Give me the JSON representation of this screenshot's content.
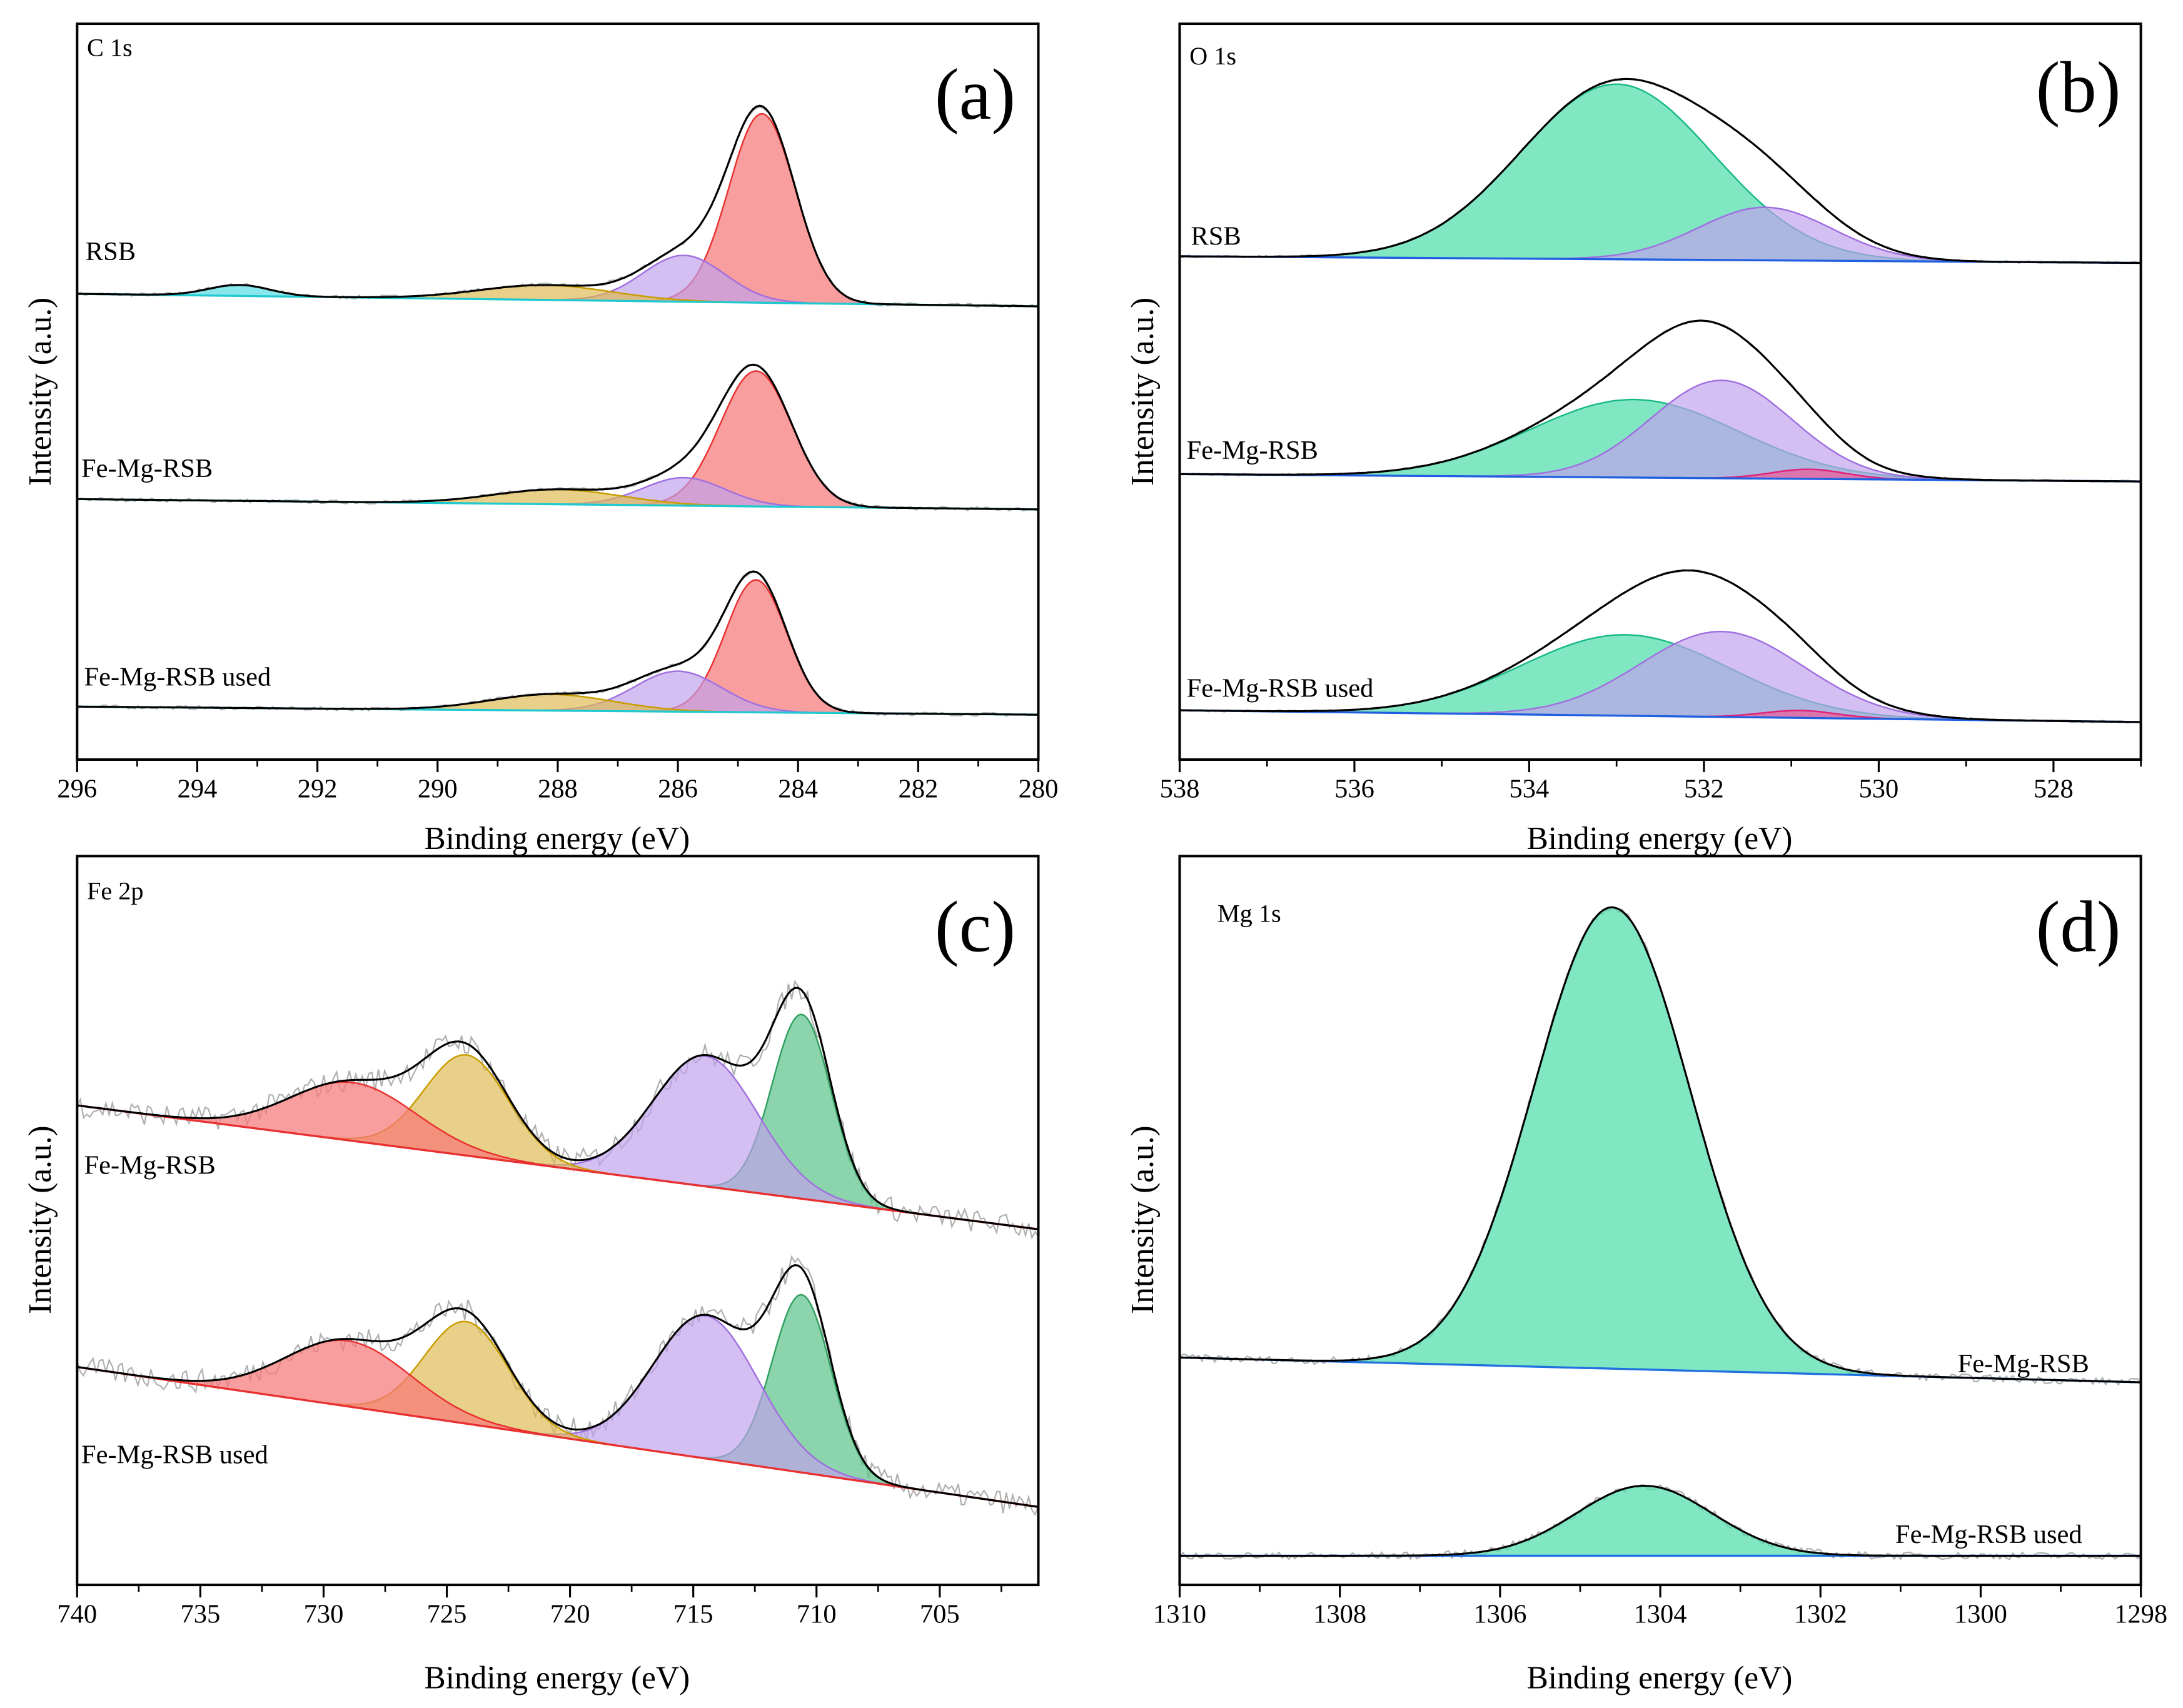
{
  "chart_data": [
    {
      "id": "a",
      "type": "area",
      "panel_label": "(a)",
      "title": "C 1s",
      "xlabel": "Binding energy (eV)",
      "ylabel": "Intensity (a.u.)",
      "xlim": [
        296,
        280
      ],
      "ylim": [
        0,
        100
      ],
      "xmajor": 2,
      "xminor": 1,
      "xticks": [
        "296",
        "294",
        "292",
        "290",
        "288",
        "286",
        "284",
        "282",
        "280"
      ],
      "raw_noise": 0.25,
      "baseline_color": "#20c8d0",
      "samples": [
        {
          "name": "RSB",
          "baseline": [
            63.3,
            61.6
          ],
          "peaks": [
            {
              "center": 284.6,
              "height": 25.7,
              "fwhm": 1.3,
              "color": "red"
            },
            {
              "center": 285.9,
              "height": 6.3,
              "fwhm": 1.6,
              "color": "purple"
            },
            {
              "center": 288.2,
              "height": 2.0,
              "fwhm": 2.6,
              "color": "gold"
            },
            {
              "center": 293.3,
              "height": 1.5,
              "fwhm": 1.2,
              "color": "cyan"
            }
          ]
        },
        {
          "name": "Fe-Mg-RSB",
          "baseline": [
            35.4,
            34.0
          ],
          "peaks": [
            {
              "center": 284.7,
              "height": 18.4,
              "fwhm": 1.4,
              "color": "red"
            },
            {
              "center": 285.9,
              "height": 3.8,
              "fwhm": 1.6,
              "color": "purple"
            },
            {
              "center": 288.0,
              "height": 2.0,
              "fwhm": 2.5,
              "color": "gold"
            }
          ]
        },
        {
          "name": "Fe-Mg-RSB used",
          "baseline": [
            7.2,
            6.1
          ],
          "peaks": [
            {
              "center": 284.7,
              "height": 18.0,
              "fwhm": 1.2,
              "color": "red"
            },
            {
              "center": 286.0,
              "height": 5.5,
              "fwhm": 1.7,
              "color": "purple"
            },
            {
              "center": 288.1,
              "height": 2.2,
              "fwhm": 2.4,
              "color": "gold"
            }
          ]
        }
      ]
    },
    {
      "id": "b",
      "type": "area",
      "panel_label": "(b)",
      "title": "O 1s",
      "xlabel": "Binding energy (eV)",
      "ylabel": "Intensity (a.u.)",
      "xlim": [
        538,
        527
      ],
      "ylim": [
        0,
        100
      ],
      "xmajor": 2,
      "xminor": 1,
      "xticks": [
        "538",
        "536",
        "534",
        "532",
        "530",
        "528"
      ],
      "raw_noise": 0.15,
      "baseline_color": "#2060e0",
      "samples": [
        {
          "name": "RSB",
          "baseline": [
            68.4,
            67.5
          ],
          "peaks": [
            {
              "center": 533.0,
              "height": 23.8,
              "fwhm": 2.6,
              "color": "green"
            },
            {
              "center": 531.3,
              "height": 7.2,
              "fwhm": 1.8,
              "color": "purple"
            }
          ]
        },
        {
          "name": "Fe-Mg-RSB",
          "baseline": [
            38.8,
            37.8
          ],
          "peaks": [
            {
              "center": 532.8,
              "height": 10.6,
              "fwhm": 2.8,
              "color": "green"
            },
            {
              "center": 531.8,
              "height": 13.3,
              "fwhm": 1.9,
              "color": "purple"
            },
            {
              "center": 530.8,
              "height": 1.3,
              "fwhm": 1.0,
              "color": "pink"
            }
          ]
        },
        {
          "name": "Fe-Mg-RSB used",
          "baseline": [
            6.7,
            5.1
          ],
          "peaks": [
            {
              "center": 532.9,
              "height": 11.0,
              "fwhm": 2.8,
              "color": "green"
            },
            {
              "center": 531.8,
              "height": 11.6,
              "fwhm": 2.2,
              "color": "purple"
            },
            {
              "center": 530.9,
              "height": 1.0,
              "fwhm": 1.0,
              "color": "pink"
            }
          ]
        }
      ]
    },
    {
      "id": "c",
      "type": "area",
      "panel_label": "(c)",
      "title": "Fe 2p",
      "xlabel": "Binding energy (eV)",
      "ylabel": "Intensity (a.u.)",
      "xlim": [
        740,
        701
      ],
      "ylim": [
        0,
        100
      ],
      "xmajor": 5,
      "xminor": 2.5,
      "xticks": [
        "740",
        "735",
        "730",
        "725",
        "720",
        "715",
        "710",
        "705"
      ],
      "raw_noise": 1.6,
      "baseline_color": "#e83030",
      "samples": [
        {
          "name": "Fe-Mg-RSB",
          "baseline": [
            65.8,
            48.8
          ],
          "peaks": [
            {
              "center": 710.6,
              "height": 25.3,
              "fwhm": 2.8,
              "color": "darkgreen"
            },
            {
              "center": 714.5,
              "height": 17.9,
              "fwhm": 5.0,
              "color": "purple"
            },
            {
              "center": 724.2,
              "height": 13.8,
              "fwhm": 4.0,
              "color": "gold"
            },
            {
              "center": 728.8,
              "height": 8.0,
              "fwhm": 6.0,
              "color": "red"
            }
          ]
        },
        {
          "name": "Fe-Mg-RSB used",
          "baseline": [
            29.9,
            10.7
          ],
          "peaks": [
            {
              "center": 710.6,
              "height": 24.4,
              "fwhm": 2.8,
              "color": "darkgreen"
            },
            {
              "center": 714.5,
              "height": 19.6,
              "fwhm": 5.0,
              "color": "purple"
            },
            {
              "center": 724.2,
              "height": 14.0,
              "fwhm": 4.0,
              "color": "gold"
            },
            {
              "center": 729.0,
              "height": 9.0,
              "fwhm": 6.0,
              "color": "red"
            }
          ]
        }
      ]
    },
    {
      "id": "d",
      "type": "area",
      "panel_label": "(d)",
      "title": "Mg 1s",
      "xlabel": "Binding energy (eV)",
      "ylabel": "Intensity (a.u.)",
      "xlim": [
        1310,
        1298
      ],
      "ylim": [
        0,
        100
      ],
      "xmajor": 2,
      "xminor": 1,
      "xticks": [
        "1310",
        "1308",
        "1306",
        "1304",
        "1302",
        "1300",
        "1298"
      ],
      "raw_noise": 0.5,
      "baseline_color": "#2070e0",
      "samples": [
        {
          "name": "Fe-Mg-RSB",
          "baseline": [
            31.2,
            27.8
          ],
          "peaks": [
            {
              "center": 1304.6,
              "height": 63.3,
              "fwhm": 2.3,
              "color": "green"
            }
          ]
        },
        {
          "name": "Fe-Mg-RSB used",
          "baseline": [
            4.0,
            4.0
          ],
          "peaks": [
            {
              "center": 1304.2,
              "height": 9.6,
              "fwhm": 2.0,
              "color": "green"
            }
          ]
        }
      ]
    }
  ],
  "colors": {
    "red": [
      "rgba(246,120,120,0.72)",
      "#e83030"
    ],
    "purple": [
      "rgba(192,160,236,0.68)",
      "#9f6fe0"
    ],
    "gold": [
      "rgba(222,186,80,0.68)",
      "#c89c00"
    ],
    "cyan": [
      "rgba(80,220,225,0.68)",
      "#20c8d0"
    ],
    "green": [
      "rgba(80,222,172,0.72)",
      "#18b888"
    ],
    "darkgreen": [
      "rgba(96,196,140,0.72)",
      "#30a060"
    ],
    "pink": [
      "rgba(240,90,150,0.7)",
      "#e0207a"
    ],
    "envelope": "#000000",
    "raw": "#b0b0b0"
  }
}
